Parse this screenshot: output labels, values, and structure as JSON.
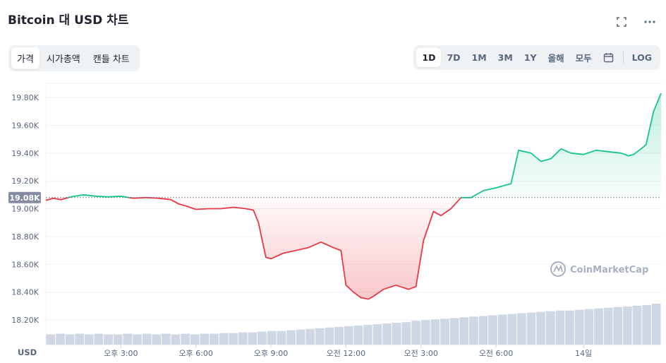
{
  "header": {
    "title": "Bitcoin 대 USD 차트",
    "fullscreen_icon": "expand-icon",
    "more_icon": "more-horizontal-icon"
  },
  "tabs": [
    {
      "label": "가격",
      "active": true
    },
    {
      "label": "시가총액",
      "active": false
    },
    {
      "label": "캔들 차트",
      "active": false
    }
  ],
  "ranges": [
    {
      "label": "1D",
      "active": true
    },
    {
      "label": "7D",
      "active": false
    },
    {
      "label": "1M",
      "active": false
    },
    {
      "label": "3M",
      "active": false
    },
    {
      "label": "1Y",
      "active": false
    },
    {
      "label": "올해",
      "active": false
    },
    {
      "label": "모두",
      "active": false
    }
  ],
  "calendar_icon": "calendar-icon",
  "log_label": "LOG",
  "colors": {
    "up": "#16c784",
    "down": "#ea3943",
    "grid": "#eff2f5",
    "badge": "#858ca2",
    "volume": "#cfd6e4"
  },
  "chart_data": {
    "type": "area",
    "unit_label": "USD",
    "watermark": "CoinMarketCap",
    "baseline": 19080,
    "baseline_label": "19.08K",
    "ylim": [
      18200,
      19900
    ],
    "yticks": [
      {
        "v": 18200,
        "label": "18.20K"
      },
      {
        "v": 18400,
        "label": "18.40K"
      },
      {
        "v": 18600,
        "label": "18.60K"
      },
      {
        "v": 18800,
        "label": "18.80K"
      },
      {
        "v": 19000,
        "label": "19.00K"
      },
      {
        "v": 19200,
        "label": "19.20K"
      },
      {
        "v": 19400,
        "label": "19.40K"
      },
      {
        "v": 19600,
        "label": "19.60K"
      },
      {
        "v": 19800,
        "label": "19.80K"
      }
    ],
    "xlim": [
      0,
      24
    ],
    "xticks": [
      {
        "t": 3,
        "label": "오후 3:00"
      },
      {
        "t": 6,
        "label": "오후 6:00"
      },
      {
        "t": 9,
        "label": "오후 9:00"
      },
      {
        "t": 12,
        "label": "오전 12:00"
      },
      {
        "t": 15,
        "label": "오전 3:00"
      },
      {
        "t": 18,
        "label": "오전 6:00"
      },
      {
        "t": 21.5,
        "label": "14일"
      }
    ],
    "series": [
      {
        "points": [
          [
            0,
            19060
          ],
          [
            0.3,
            19075
          ],
          [
            0.6,
            19065
          ],
          [
            1,
            19085
          ],
          [
            1.5,
            19100
          ],
          [
            2,
            19090
          ],
          [
            2.5,
            19085
          ],
          [
            3,
            19090
          ],
          [
            3.5,
            19075
          ],
          [
            4,
            19080
          ],
          [
            4.5,
            19075
          ],
          [
            5,
            19065
          ],
          [
            5.3,
            19035
          ],
          [
            5.6,
            19020
          ],
          [
            6,
            18995
          ],
          [
            6.5,
            19000
          ],
          [
            7,
            19000
          ],
          [
            7.5,
            19010
          ],
          [
            8,
            19000
          ],
          [
            8.3,
            18990
          ],
          [
            8.5,
            18900
          ],
          [
            8.8,
            18650
          ],
          [
            9,
            18640
          ],
          [
            9.5,
            18680
          ],
          [
            10,
            18700
          ],
          [
            10.5,
            18720
          ],
          [
            11,
            18760
          ],
          [
            11.5,
            18720
          ],
          [
            11.8,
            18700
          ],
          [
            12,
            18450
          ],
          [
            12.3,
            18400
          ],
          [
            12.6,
            18360
          ],
          [
            12.9,
            18350
          ],
          [
            13.1,
            18370
          ],
          [
            13.5,
            18420
          ],
          [
            14,
            18450
          ],
          [
            14.5,
            18420
          ],
          [
            14.8,
            18440
          ],
          [
            15.1,
            18770
          ],
          [
            15.5,
            18980
          ],
          [
            15.8,
            18950
          ],
          [
            16.2,
            19000
          ],
          [
            16.6,
            19080
          ],
          [
            17,
            19080
          ],
          [
            17.5,
            19130
          ],
          [
            18,
            19150
          ],
          [
            18.4,
            19170
          ],
          [
            18.6,
            19180
          ],
          [
            18.9,
            19420
          ],
          [
            19.4,
            19400
          ],
          [
            19.8,
            19340
          ],
          [
            20.2,
            19360
          ],
          [
            20.6,
            19430
          ],
          [
            21,
            19400
          ],
          [
            21.5,
            19390
          ],
          [
            22,
            19420
          ],
          [
            22.5,
            19410
          ],
          [
            23,
            19400
          ],
          [
            23.3,
            19380
          ],
          [
            23.5,
            19390
          ],
          [
            23.8,
            19430
          ],
          [
            24,
            19460
          ],
          [
            24.3,
            19700
          ],
          [
            24.6,
            19830
          ]
        ]
      }
    ],
    "volume": [
      0.15,
      0.16,
      0.15,
      0.16,
      0.15,
      0.16,
      0.15,
      0.15,
      0.16,
      0.15,
      0.16,
      0.15,
      0.16,
      0.15,
      0.16,
      0.15,
      0.16,
      0.16,
      0.17,
      0.17,
      0.18,
      0.18,
      0.19,
      0.2,
      0.2,
      0.21,
      0.22,
      0.23,
      0.24,
      0.25,
      0.26,
      0.27,
      0.28,
      0.29,
      0.3,
      0.31,
      0.32,
      0.33,
      0.35,
      0.36,
      0.37,
      0.38,
      0.39,
      0.4,
      0.41,
      0.42,
      0.43,
      0.44,
      0.45,
      0.46,
      0.47,
      0.48,
      0.49,
      0.5,
      0.5,
      0.51,
      0.52,
      0.53,
      0.54,
      0.55,
      0.56,
      0.57,
      0.58,
      0.6
    ]
  }
}
